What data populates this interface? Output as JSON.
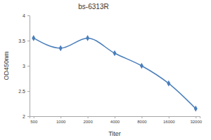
{
  "chart_data": {
    "type": "line",
    "title": "bs-6313R",
    "x_label": "Titer",
    "y_label": "OD450nm",
    "categories": [
      "500",
      "1000",
      "2000",
      "4000",
      "8000",
      "16000",
      "32000"
    ],
    "values": [
      3.55,
      3.35,
      3.55,
      3.25,
      3.0,
      2.65,
      2.15
    ],
    "color": "#4a7ebb",
    "marker": "diamond",
    "line_style": "smooth",
    "ylim": [
      2,
      4
    ],
    "yticks": [
      2,
      2.5,
      3,
      3.5,
      4
    ],
    "grid": false
  }
}
